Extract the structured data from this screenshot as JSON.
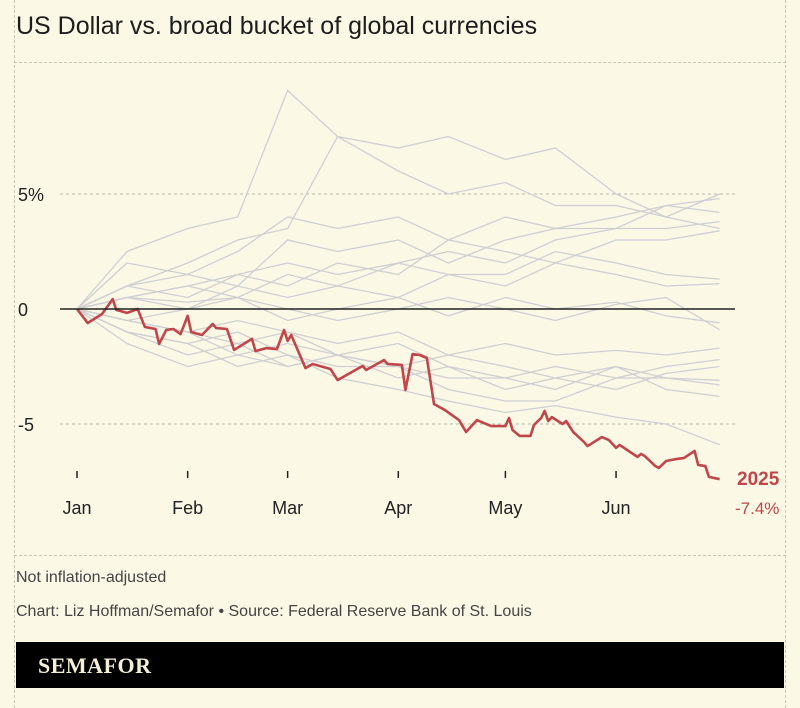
{
  "title": "US Dollar vs. broad bucket of global currencies",
  "footer": {
    "note": "Not inflation-adjusted",
    "credit": "Chart: Liz Hoffman/Semafor • Source: Federal Reserve Bank of St. Louis",
    "brand": "SEMAFOR"
  },
  "chart_data": {
    "type": "line",
    "title": "US Dollar vs. broad bucket of global currencies",
    "xlabel": "",
    "ylabel": "",
    "x_ticks": [
      "Jan",
      "Feb",
      "Mar",
      "Apr",
      "May",
      "Jun"
    ],
    "y_ticks": [
      {
        "value": 5,
        "label": "5%"
      },
      {
        "value": 0,
        "label": "0"
      },
      {
        "value": -5,
        "label": "-5"
      }
    ],
    "ylim": [
      -7.5,
      10
    ],
    "xlim": [
      "2025-01-01",
      "2025-06-30"
    ],
    "grid": "horizontal dashed",
    "colors": {
      "highlight": "#c0464a",
      "background_series": "#cfcfd2",
      "zero_line": "#222222"
    },
    "highlight_series": {
      "name": "2025",
      "end_label": "-7.4%",
      "points": [
        [
          "2025-01-01",
          0
        ],
        [
          "2025-01-04",
          -0.61
        ],
        [
          "2025-01-08",
          -0.22
        ],
        [
          "2025-01-11",
          0.43
        ],
        [
          "2025-01-12",
          -0.04
        ],
        [
          "2025-01-15",
          -0.17
        ],
        [
          "2025-01-18",
          0
        ],
        [
          "2025-01-20",
          -0.78
        ],
        [
          "2025-01-23",
          -0.87
        ],
        [
          "2025-01-24",
          -1.52
        ],
        [
          "2025-01-26",
          -0.91
        ],
        [
          "2025-01-28",
          -0.87
        ],
        [
          "2025-01-30",
          -1.09
        ],
        [
          "2025-02-01",
          -0.3
        ],
        [
          "2025-02-02",
          -1.0
        ],
        [
          "2025-02-05",
          -1.13
        ],
        [
          "2025-02-08",
          -0.65
        ],
        [
          "2025-02-09",
          -0.83
        ],
        [
          "2025-02-12",
          -0.87
        ],
        [
          "2025-02-14",
          -1.78
        ],
        [
          "2025-02-19",
          -1.3
        ],
        [
          "2025-02-20",
          -1.83
        ],
        [
          "2025-02-23",
          -1.7
        ],
        [
          "2025-02-26",
          -1.74
        ],
        [
          "2025-02-28",
          -0.91
        ],
        [
          "2025-03-01",
          -1.39
        ],
        [
          "2025-03-02",
          -1.13
        ],
        [
          "2025-03-06",
          -2.57
        ],
        [
          "2025-03-08",
          -2.39
        ],
        [
          "2025-03-13",
          -2.61
        ],
        [
          "2025-03-15",
          -3.09
        ],
        [
          "2025-03-19",
          -2.74
        ],
        [
          "2025-03-22",
          -2.48
        ],
        [
          "2025-03-23",
          -2.65
        ],
        [
          "2025-03-28",
          -2.22
        ],
        [
          "2025-03-29",
          -2.39
        ],
        [
          "2025-04-02",
          -2.43
        ],
        [
          "2025-04-03",
          -3.52
        ],
        [
          "2025-04-05",
          -1.96
        ],
        [
          "2025-04-07",
          -2.0
        ],
        [
          "2025-04-09",
          -2.13
        ],
        [
          "2025-04-11",
          -4.13
        ],
        [
          "2025-04-14",
          -4.39
        ],
        [
          "2025-04-18",
          -4.83
        ],
        [
          "2025-04-20",
          -5.35
        ],
        [
          "2025-04-23",
          -4.83
        ],
        [
          "2025-04-27",
          -5.09
        ],
        [
          "2025-05-01",
          -5.09
        ],
        [
          "2025-05-02",
          -4.74
        ],
        [
          "2025-05-03",
          -5.26
        ],
        [
          "2025-05-05",
          -5.52
        ],
        [
          "2025-05-08",
          -5.52
        ],
        [
          "2025-05-09",
          -5.04
        ],
        [
          "2025-05-11",
          -4.74
        ],
        [
          "2025-05-12",
          -4.43
        ],
        [
          "2025-05-13",
          -4.87
        ],
        [
          "2025-05-14",
          -4.7
        ],
        [
          "2025-05-17",
          -5.0
        ],
        [
          "2025-05-18",
          -4.87
        ],
        [
          "2025-05-20",
          -5.35
        ],
        [
          "2025-05-23",
          -5.78
        ],
        [
          "2025-05-24",
          -5.96
        ],
        [
          "2025-05-28",
          -5.57
        ],
        [
          "2025-05-30",
          -5.7
        ],
        [
          "2025-06-01",
          -6.04
        ],
        [
          "2025-06-02",
          -5.91
        ],
        [
          "2025-06-07",
          -6.43
        ],
        [
          "2025-06-08",
          -6.3
        ],
        [
          "2025-06-09",
          -6.39
        ],
        [
          "2025-06-12",
          -6.83
        ],
        [
          "2025-06-13",
          -6.91
        ],
        [
          "2025-06-15",
          -6.61
        ],
        [
          "2025-06-18",
          -6.52
        ],
        [
          "2025-06-20",
          -6.48
        ],
        [
          "2025-06-23",
          -6.17
        ],
        [
          "2025-06-24",
          -6.78
        ],
        [
          "2025-06-26",
          -6.83
        ],
        [
          "2025-06-27",
          -7.3
        ],
        [
          "2025-06-30",
          -7.4
        ]
      ]
    },
    "background_dates": [
      "2025-01-01",
      "2025-01-15",
      "2025-02-01",
      "2025-02-15",
      "2025-03-01",
      "2025-03-15",
      "2025-04-01",
      "2025-04-15",
      "2025-05-01",
      "2025-05-15",
      "2025-06-01",
      "2025-06-15",
      "2025-06-30"
    ],
    "background_series": [
      [
        0,
        2.5,
        3.5,
        4,
        9.5,
        7.5,
        7,
        7.5,
        6.5,
        7,
        5,
        4,
        3.5
      ],
      [
        0,
        1,
        2,
        3,
        3.5,
        7.5,
        6,
        5,
        5.5,
        4.5,
        4.5,
        4,
        5.0
      ],
      [
        0,
        2,
        1.5,
        2.5,
        4,
        3.5,
        4,
        3,
        4,
        3.5,
        3.5,
        4.5,
        4.8
      ],
      [
        0,
        1,
        1.5,
        1,
        3,
        2.5,
        3,
        2,
        3,
        3.5,
        4,
        4.5,
        4.2
      ],
      [
        0,
        0.5,
        1,
        1.5,
        2,
        1.5,
        2,
        2.5,
        2,
        3,
        3.5,
        3.5,
        3.8
      ],
      [
        0,
        1,
        0.5,
        1.5,
        1,
        2,
        1.5,
        3,
        2.5,
        2,
        3,
        3,
        3.4
      ],
      [
        0,
        0.5,
        1,
        0.5,
        1.5,
        1,
        2,
        1.5,
        1.5,
        2.5,
        2,
        1.5,
        1.3
      ],
      [
        0,
        0.5,
        0,
        1,
        0.5,
        1,
        0.5,
        1.5,
        1,
        2,
        1.5,
        1,
        1.1
      ],
      [
        0,
        0.5,
        0.3,
        0.5,
        -0.5,
        0,
        0.5,
        -0.3,
        0.5,
        0,
        0.3,
        -0.3,
        -0.6
      ],
      [
        0,
        -0.5,
        0,
        0.5,
        0,
        -0.5,
        0,
        0.5,
        0,
        -0.5,
        0.2,
        0.5,
        -0.9
      ],
      [
        0,
        -0.5,
        -1,
        -0.5,
        -1,
        -1.5,
        -1,
        -2,
        -1.5,
        -2,
        -1.8,
        -2,
        -1.7
      ],
      [
        0,
        -1,
        -1.5,
        -1,
        -2,
        -2.5,
        -2.5,
        -3,
        -3,
        -2.5,
        -3,
        -2.5,
        -2.2
      ],
      [
        0,
        -0.5,
        -1,
        -1.5,
        -1,
        -2,
        -2.5,
        -2,
        -2.5,
        -3,
        -3.5,
        -2.8,
        -2.5
      ],
      [
        0,
        -1,
        -2,
        -1.5,
        -2.5,
        -2,
        -3,
        -2.5,
        -3.5,
        -3,
        -2.5,
        -3,
        -3.3
      ],
      [
        0,
        -0.5,
        -1,
        -2,
        -1.5,
        -2,
        -1.5,
        -2.5,
        -3,
        -3.5,
        -2.5,
        -3.5,
        -3.8
      ],
      [
        0,
        -1,
        -1.5,
        -2.5,
        -2,
        -3,
        -3.5,
        -4,
        -4.5,
        -4.2,
        -4.7,
        -5,
        -5.9
      ],
      [
        0,
        -1.5,
        -2.5,
        -2,
        -2.5,
        -2,
        -2.5,
        -3.5,
        -4,
        -4,
        -3,
        -3,
        -3.1
      ]
    ]
  }
}
